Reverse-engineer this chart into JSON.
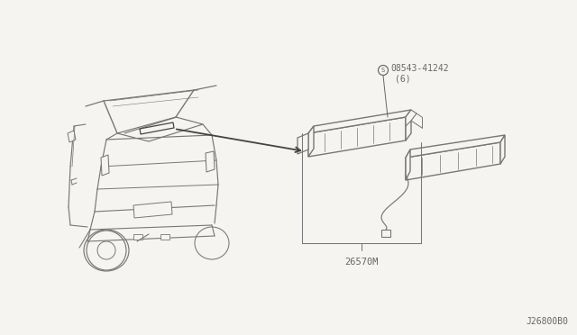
{
  "bg_color": "#f5f4f0",
  "line_color": "#777777",
  "text_color": "#666666",
  "dark_line": "#444444",
  "part_label_1": "08543-41242",
  "part_label_1b": "(6)",
  "part_label_2": "26570M",
  "corner_label": "J26800B0",
  "fig_width": 6.4,
  "fig_height": 3.72,
  "dpi": 100
}
